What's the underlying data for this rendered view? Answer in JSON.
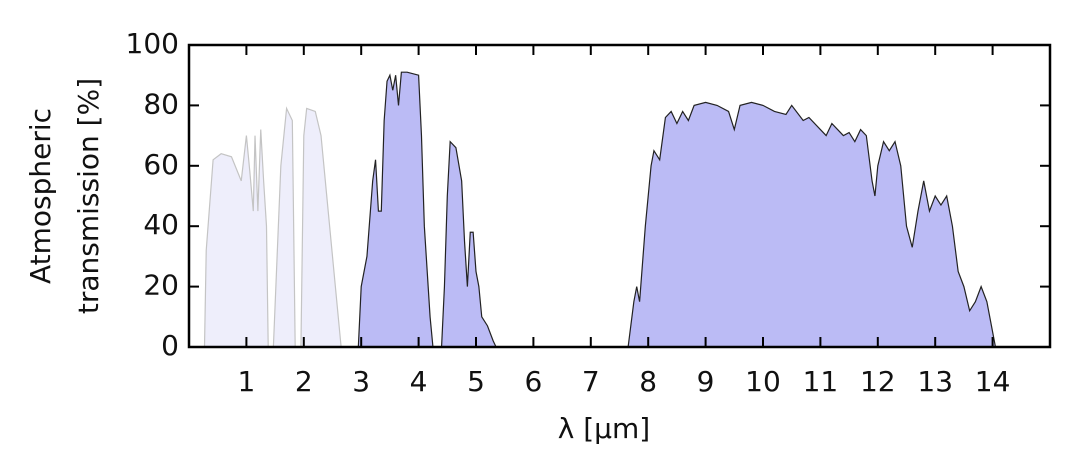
{
  "chart_data": {
    "type": "area",
    "ylabel": [
      "Atmospheric",
      "transmission [%]"
    ],
    "xlabel": "λ [µm]",
    "xlim": [
      0,
      15
    ],
    "ylim": [
      0,
      100
    ],
    "xticks": [
      1,
      2,
      3,
      4,
      5,
      6,
      7,
      8,
      9,
      10,
      11,
      12,
      13,
      14
    ],
    "yticks": [
      0,
      20,
      40,
      60,
      80,
      100
    ],
    "series": [
      {
        "color": "#eeeefb",
        "edge": "#c4c4c4",
        "x": [
          0.27,
          0.3,
          0.42,
          0.56,
          0.74,
          0.91,
          1.0,
          1.06,
          1.12,
          1.15,
          1.2,
          1.25,
          1.3,
          1.35,
          1.38,
          1.42,
          1.47,
          1.6,
          1.7,
          1.8,
          1.85,
          1.9,
          1.95,
          2.0,
          2.05,
          2.2,
          2.3,
          2.5,
          2.65
        ],
        "values": [
          0,
          32,
          62,
          64,
          63,
          55,
          70,
          58,
          45,
          70,
          45,
          72,
          55,
          40,
          0,
          null,
          0,
          60,
          79,
          75,
          0,
          null,
          0,
          70,
          79,
          78,
          70,
          30,
          0
        ]
      },
      {
        "color": "#bbbbf5",
        "edge": "#222222",
        "x": [
          2.95,
          3.0,
          3.1,
          3.2,
          3.25,
          3.3,
          3.35,
          3.4,
          3.45,
          3.5,
          3.55,
          3.6,
          3.65,
          3.7,
          3.8,
          4.0,
          4.05,
          4.1,
          4.2,
          4.25,
          4.3,
          4.4,
          4.45,
          4.5,
          4.55,
          4.65,
          4.75,
          4.8,
          4.85,
          4.9,
          4.95,
          5.0,
          5.05,
          5.1,
          5.2,
          5.3,
          5.35,
          6.5,
          7.65,
          7.75,
          7.8,
          7.85,
          7.95,
          8.05,
          8.1,
          8.2,
          8.3,
          8.4,
          8.5,
          8.6,
          8.7,
          8.8,
          9.0,
          9.2,
          9.4,
          9.5,
          9.6,
          9.8,
          10.0,
          10.2,
          10.4,
          10.5,
          10.7,
          10.8,
          11.0,
          11.1,
          11.2,
          11.4,
          11.5,
          11.6,
          11.7,
          11.8,
          11.9,
          11.95,
          12.0,
          12.1,
          12.2,
          12.3,
          12.4,
          12.5,
          12.6,
          12.7,
          12.8,
          12.9,
          13.0,
          13.1,
          13.2,
          13.3,
          13.4,
          13.5,
          13.6,
          13.7,
          13.8,
          13.9,
          14.0,
          14.05
        ],
        "values": [
          0,
          20,
          30,
          55,
          62,
          45,
          45,
          75,
          88,
          90,
          85,
          90,
          80,
          91,
          91,
          90,
          70,
          40,
          10,
          0,
          null,
          0,
          20,
          50,
          68,
          66,
          55,
          35,
          20,
          38,
          38,
          25,
          20,
          10,
          7,
          2,
          0,
          null,
          0,
          15,
          20,
          15,
          40,
          60,
          65,
          62,
          76,
          78,
          74,
          78,
          75,
          80,
          81,
          80,
          78,
          72,
          80,
          81,
          80,
          78,
          77,
          80,
          75,
          76,
          72,
          70,
          74,
          70,
          71,
          68,
          72,
          70,
          55,
          50,
          60,
          68,
          65,
          68,
          60,
          40,
          33,
          45,
          55,
          45,
          50,
          47,
          50,
          40,
          25,
          20,
          12,
          15,
          20,
          15,
          5,
          0
        ]
      }
    ]
  }
}
